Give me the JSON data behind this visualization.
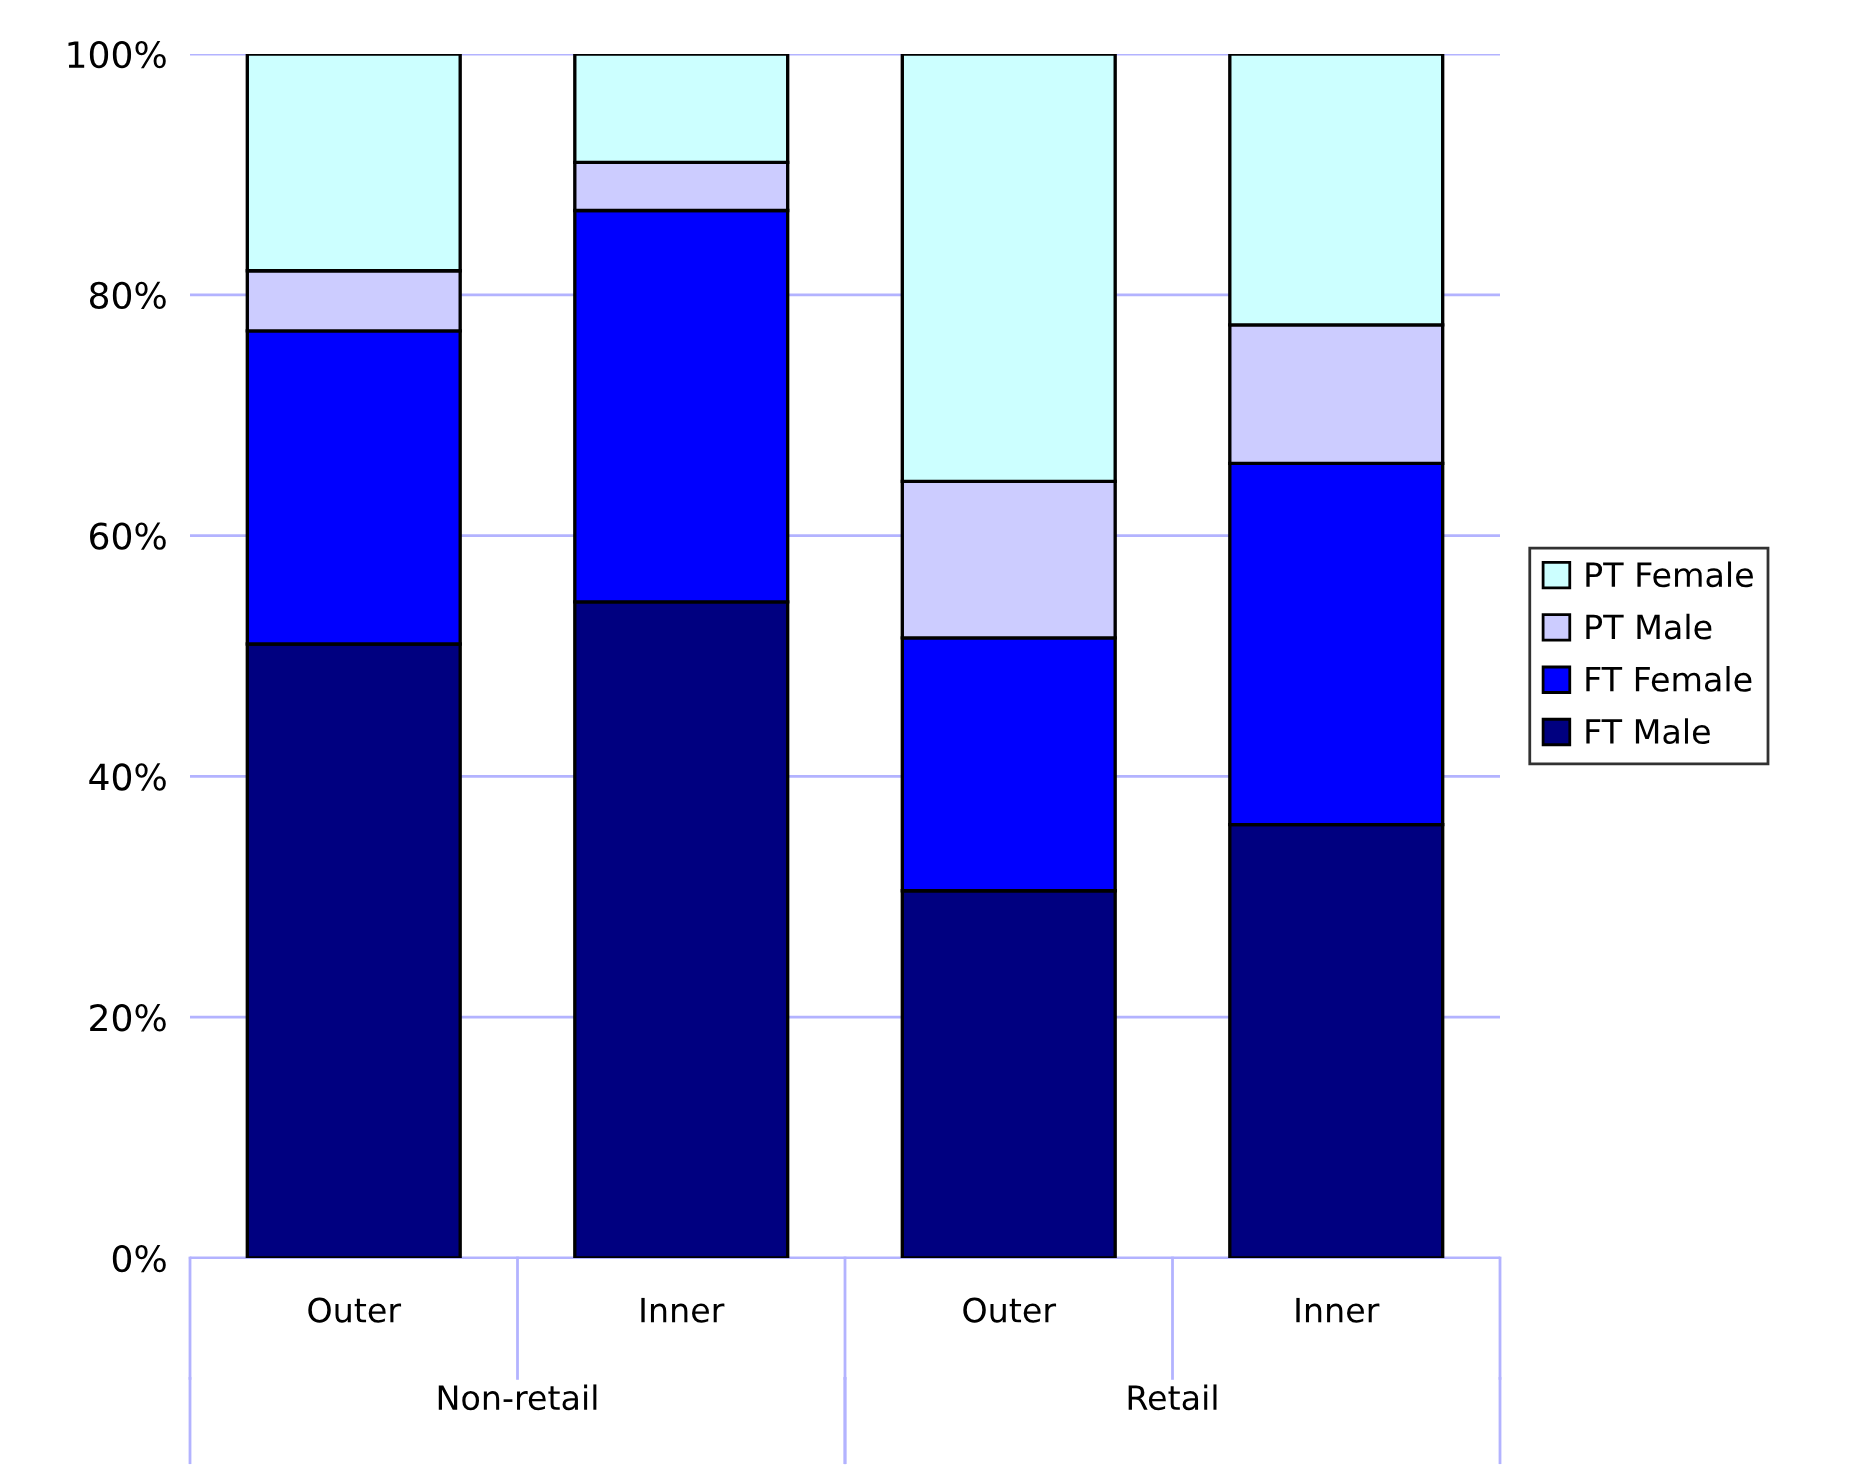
{
  "chart_data": {
    "type": "bar",
    "stacked": true,
    "categories": [
      "Outer",
      "Inner",
      "Outer",
      "Inner"
    ],
    "annotations": [
      "Non-retail",
      "Retail"
    ],
    "series": [
      {
        "name": "FT Male",
        "color": "#000080",
        "values": [
          51,
          54.5,
          30.5,
          36
        ]
      },
      {
        "name": "FT Female",
        "color": "#0000ff",
        "values": [
          26,
          32.5,
          21,
          30
        ]
      },
      {
        "name": "PT Male",
        "color": "#ccccff",
        "values": [
          5,
          4,
          13,
          11.5
        ]
      },
      {
        "name": "PT Female",
        "color": "#ccffff",
        "values": [
          18,
          9,
          35.5,
          22.5
        ]
      }
    ],
    "ylim": [
      0,
      100
    ],
    "yticks": [
      {
        "value": 0,
        "label": "0%"
      },
      {
        "value": 20,
        "label": "20%"
      },
      {
        "value": 40,
        "label": "40%"
      },
      {
        "value": 60,
        "label": "60%"
      },
      {
        "value": 80,
        "label": "80%"
      },
      {
        "value": 100,
        "label": "100%"
      }
    ],
    "grid": "y",
    "legend": "right"
  }
}
